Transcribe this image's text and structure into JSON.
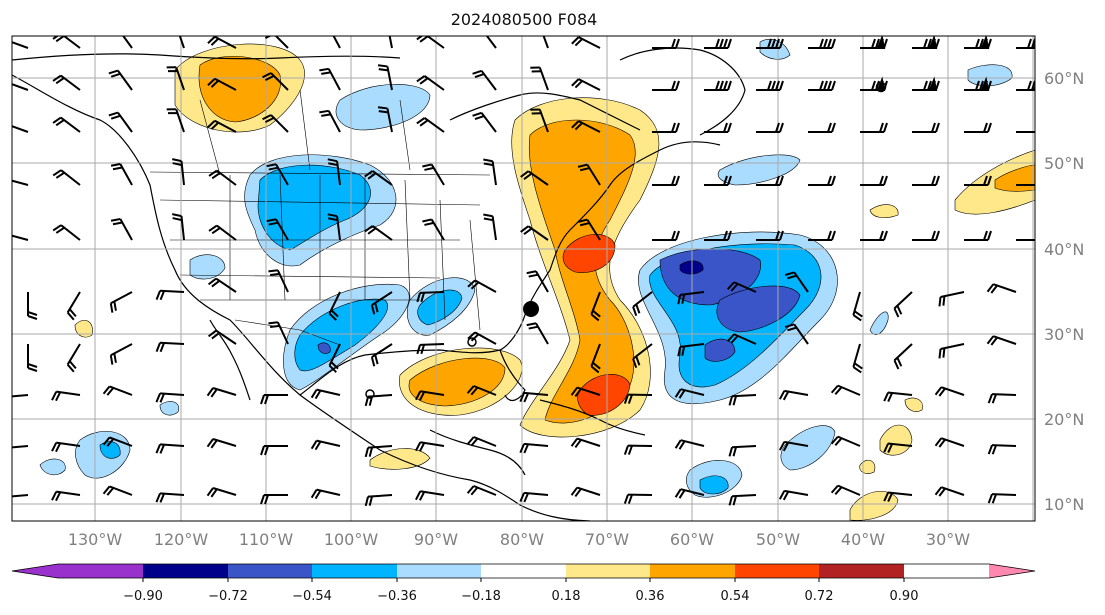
{
  "title": "2024080500 F084",
  "lat_labels": [
    "60°N",
    "50°N",
    "40°N",
    "30°N",
    "20°N",
    "10°N"
  ],
  "lon_labels": [
    "130°W",
    "120°W",
    "110°W",
    "100°W",
    "90°W",
    "80°W",
    "70°W",
    "60°W",
    "50°W",
    "40°W",
    "30°W"
  ],
  "colorbar": {
    "tick_labels": [
      "−0.90",
      "−0.72",
      "−0.54",
      "−0.36",
      "−0.18",
      "0.18",
      "0.36",
      "0.54",
      "0.72",
      "0.90"
    ],
    "colors": [
      "#9932cc",
      "#00008b",
      "#3a55c8",
      "#00b4ff",
      "#aadcff",
      "#ffffff",
      "#ffe88a",
      "#ffa500",
      "#ff4500",
      "#b22222",
      "#ff88b0"
    ]
  },
  "field_colors": {
    "pos_light": "#ffe88a",
    "pos_med": "#ffa500",
    "pos_strong": "#ff4500",
    "neg_light": "#aadcff",
    "neg_med": "#00b4ff",
    "neg_strong": "#3a55c8",
    "neg_max": "#00008b"
  },
  "marker": {
    "type": "black-dot",
    "lon": -80,
    "lat": 33
  }
}
